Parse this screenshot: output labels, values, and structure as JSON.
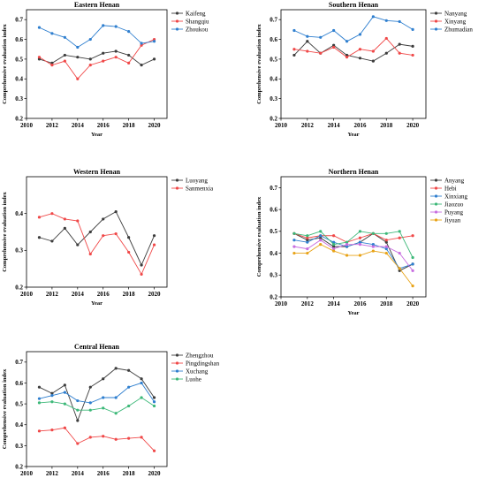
{
  "chart_data": [
    {
      "type": "line",
      "title": "Eastern Henan",
      "xlabel": "Year",
      "ylabel": "Comprehensive evaluation index",
      "xlim": [
        2010,
        2021
      ],
      "ylim": [
        0.2,
        0.75
      ],
      "xticks": [
        "2010",
        "2012",
        "2014",
        "2016",
        "2018",
        "2020"
      ],
      "yticks": [
        "0.2",
        "0.3",
        "0.4",
        "0.5",
        "0.6",
        "0.7"
      ],
      "x": [
        2011,
        2012,
        2013,
        2014,
        2015,
        2016,
        2017,
        2018,
        2019,
        2020
      ],
      "series": [
        {
          "name": "Kaifeng",
          "color": "#3c3c3c",
          "values": [
            0.5,
            0.48,
            0.52,
            0.51,
            0.5,
            0.53,
            0.54,
            0.52,
            0.47,
            0.5
          ]
        },
        {
          "name": "Shangqiu",
          "color": "#f04848",
          "values": [
            0.51,
            0.47,
            0.49,
            0.4,
            0.47,
            0.49,
            0.51,
            0.48,
            0.57,
            0.6
          ]
        },
        {
          "name": "Zhoukou",
          "color": "#2f7fcf",
          "values": [
            0.66,
            0.63,
            0.61,
            0.56,
            0.6,
            0.67,
            0.665,
            0.64,
            0.58,
            0.59
          ]
        }
      ]
    },
    {
      "type": "line",
      "title": "Southern Henan",
      "xlabel": "Year",
      "ylabel": "Comprehensive evaluation index",
      "xlim": [
        2010,
        2021
      ],
      "ylim": [
        0.2,
        0.75
      ],
      "xticks": [
        "2010",
        "2012",
        "2014",
        "2016",
        "2018",
        "2020"
      ],
      "yticks": [
        "0.2",
        "0.3",
        "0.4",
        "0.5",
        "0.6",
        "0.7"
      ],
      "x": [
        2011,
        2012,
        2013,
        2014,
        2015,
        2016,
        2017,
        2018,
        2019,
        2020
      ],
      "series": [
        {
          "name": "Nanyang",
          "color": "#3c3c3c",
          "values": [
            0.52,
            0.59,
            0.53,
            0.57,
            0.52,
            0.505,
            0.49,
            0.53,
            0.575,
            0.565
          ]
        },
        {
          "name": "Xinyang",
          "color": "#f04848",
          "values": [
            0.55,
            0.54,
            0.53,
            0.56,
            0.51,
            0.55,
            0.54,
            0.605,
            0.53,
            0.52
          ]
        },
        {
          "name": "Zhumadian",
          "color": "#2f7fcf",
          "values": [
            0.645,
            0.615,
            0.61,
            0.645,
            0.59,
            0.625,
            0.715,
            0.695,
            0.69,
            0.65
          ]
        }
      ]
    },
    {
      "type": "line",
      "title": "Western Henan",
      "xlabel": "Year",
      "ylabel": "Comprehensive evaluation index",
      "xlim": [
        2010,
        2021
      ],
      "ylim": [
        0.2,
        0.5
      ],
      "xticks": [
        "2010",
        "2012",
        "2014",
        "2016",
        "2018",
        "2020"
      ],
      "yticks": [
        "0.2",
        "0.3",
        "0.4"
      ],
      "x": [
        2011,
        2012,
        2013,
        2014,
        2015,
        2016,
        2017,
        2018,
        2019,
        2020
      ],
      "series": [
        {
          "name": "Luoyang",
          "color": "#3c3c3c",
          "values": [
            0.335,
            0.325,
            0.36,
            0.315,
            0.35,
            0.385,
            0.405,
            0.335,
            0.26,
            0.34
          ]
        },
        {
          "name": "Sanmenxia",
          "color": "#f04848",
          "values": [
            0.39,
            0.4,
            0.385,
            0.38,
            0.29,
            0.34,
            0.345,
            0.295,
            0.235,
            0.315
          ]
        }
      ]
    },
    {
      "type": "line",
      "title": "Northern Henan",
      "xlabel": "Year",
      "ylabel": "Comprehensive evaluation index",
      "xlim": [
        2010,
        2021
      ],
      "ylim": [
        0.2,
        0.75
      ],
      "xticks": [
        "2010",
        "2012",
        "2014",
        "2016",
        "2018",
        "2020"
      ],
      "yticks": [
        "0.2",
        "0.3",
        "0.4",
        "0.5",
        "0.6",
        "0.7"
      ],
      "x": [
        2011,
        2012,
        2013,
        2014,
        2015,
        2016,
        2017,
        2018,
        2019,
        2020
      ],
      "series": [
        {
          "name": "Anyang",
          "color": "#3c3c3c",
          "values": [
            0.49,
            0.46,
            0.47,
            0.43,
            0.43,
            0.45,
            0.49,
            0.45,
            0.32,
            0.35
          ]
        },
        {
          "name": "Hebi",
          "color": "#f04848",
          "values": [
            0.49,
            0.47,
            0.48,
            0.48,
            0.45,
            0.47,
            0.49,
            0.46,
            0.47,
            0.48
          ]
        },
        {
          "name": "Xinxiang",
          "color": "#2f7fcf",
          "values": [
            0.46,
            0.45,
            0.48,
            0.45,
            0.43,
            0.45,
            0.44,
            0.42,
            0.33,
            0.35
          ]
        },
        {
          "name": "Jiaozuo",
          "color": "#3cb878",
          "values": [
            0.49,
            0.48,
            0.5,
            0.44,
            0.45,
            0.5,
            0.49,
            0.49,
            0.5,
            0.38
          ]
        },
        {
          "name": "Puyang",
          "color": "#c86ee0",
          "values": [
            0.43,
            0.42,
            0.46,
            0.42,
            0.44,
            0.44,
            0.43,
            0.43,
            0.4,
            0.32
          ]
        },
        {
          "name": "Jiyuan",
          "color": "#e8a317",
          "values": [
            0.4,
            0.4,
            0.44,
            0.41,
            0.39,
            0.39,
            0.41,
            0.4,
            0.33,
            0.25
          ]
        }
      ]
    },
    {
      "type": "line",
      "title": "Central Henan",
      "xlabel": "Year",
      "ylabel": "Comprehensive evaluation index",
      "xlim": [
        2010,
        2021
      ],
      "ylim": [
        0.2,
        0.75
      ],
      "xticks": [
        "2010",
        "2012",
        "2014",
        "2016",
        "2018",
        "2020"
      ],
      "yticks": [
        "0.2",
        "0.3",
        "0.4",
        "0.5",
        "0.6",
        "0.7"
      ],
      "x": [
        2011,
        2012,
        2013,
        2014,
        2015,
        2016,
        2017,
        2018,
        2019,
        2020
      ],
      "series": [
        {
          "name": "Zhengzhou",
          "color": "#3c3c3c",
          "values": [
            0.58,
            0.55,
            0.59,
            0.42,
            0.58,
            0.62,
            0.67,
            0.66,
            0.62,
            0.53
          ]
        },
        {
          "name": "Pingdingshan",
          "color": "#f04848",
          "values": [
            0.37,
            0.375,
            0.385,
            0.31,
            0.34,
            0.345,
            0.33,
            0.335,
            0.34,
            0.275
          ]
        },
        {
          "name": "Xuchang",
          "color": "#2f7fcf",
          "values": [
            0.525,
            0.54,
            0.555,
            0.515,
            0.505,
            0.53,
            0.53,
            0.58,
            0.6,
            0.51
          ]
        },
        {
          "name": "Luohe",
          "color": "#3cb878",
          "values": [
            0.505,
            0.51,
            0.5,
            0.47,
            0.47,
            0.48,
            0.455,
            0.49,
            0.53,
            0.49
          ]
        }
      ]
    }
  ]
}
